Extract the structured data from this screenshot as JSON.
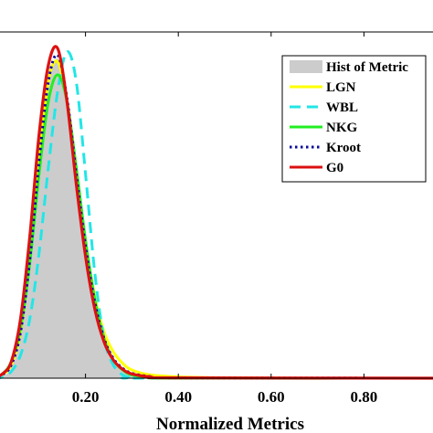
{
  "chart_data": {
    "type": "line",
    "xlabel": "Normalized Metrics",
    "ylabel": "",
    "xlim": [
      0.0,
      1.0
    ],
    "x_ticks": [
      0.2,
      0.4,
      0.6,
      0.8
    ],
    "x_tick_labels": [
      "0.20",
      "0.40",
      "0.60",
      "0.80"
    ],
    "grid": false,
    "legend_position": "top-right",
    "histogram": {
      "name": "Hist of Metric",
      "color": "#cccccc",
      "points": [
        [
          0.0,
          0.0
        ],
        [
          0.02,
          0.005
        ],
        [
          0.04,
          0.03
        ],
        [
          0.06,
          0.12
        ],
        [
          0.08,
          0.32
        ],
        [
          0.1,
          0.62
        ],
        [
          0.12,
          0.88
        ],
        [
          0.14,
          0.97
        ],
        [
          0.16,
          0.85
        ],
        [
          0.18,
          0.62
        ],
        [
          0.2,
          0.4
        ],
        [
          0.22,
          0.22
        ],
        [
          0.24,
          0.11
        ],
        [
          0.26,
          0.05
        ],
        [
          0.28,
          0.02
        ],
        [
          0.3,
          0.008
        ],
        [
          0.32,
          0.003
        ],
        [
          0.34,
          0.0
        ]
      ]
    },
    "series": [
      {
        "name": "LGN",
        "color": "#ffff00",
        "dash": "solid",
        "points": [
          [
            0.0,
            0.0
          ],
          [
            0.02,
            0.01
          ],
          [
            0.04,
            0.04
          ],
          [
            0.06,
            0.14
          ],
          [
            0.08,
            0.36
          ],
          [
            0.1,
            0.66
          ],
          [
            0.12,
            0.9
          ],
          [
            0.14,
            0.96
          ],
          [
            0.16,
            0.84
          ],
          [
            0.18,
            0.62
          ],
          [
            0.2,
            0.41
          ],
          [
            0.22,
            0.25
          ],
          [
            0.24,
            0.14
          ],
          [
            0.26,
            0.08
          ],
          [
            0.28,
            0.045
          ],
          [
            0.3,
            0.025
          ],
          [
            0.34,
            0.01
          ],
          [
            0.4,
            0.004
          ],
          [
            0.5,
            0.001
          ],
          [
            0.7,
            0.0
          ],
          [
            1.0,
            0.0
          ]
        ]
      },
      {
        "name": "WBL",
        "color": "#22e6e6",
        "dash": "dashed",
        "points": [
          [
            0.0,
            0.0
          ],
          [
            0.02,
            0.003
          ],
          [
            0.04,
            0.02
          ],
          [
            0.06,
            0.07
          ],
          [
            0.08,
            0.18
          ],
          [
            0.1,
            0.38
          ],
          [
            0.12,
            0.64
          ],
          [
            0.14,
            0.87
          ],
          [
            0.16,
            0.99
          ],
          [
            0.18,
            0.9
          ],
          [
            0.2,
            0.62
          ],
          [
            0.22,
            0.32
          ],
          [
            0.24,
            0.12
          ],
          [
            0.26,
            0.04
          ],
          [
            0.28,
            0.01
          ],
          [
            0.3,
            0.002
          ],
          [
            0.34,
            0.0
          ],
          [
            1.0,
            0.0
          ]
        ]
      },
      {
        "name": "NKG",
        "color": "#22ee22",
        "dash": "solid",
        "points": [
          [
            0.0,
            0.0
          ],
          [
            0.02,
            0.012
          ],
          [
            0.04,
            0.05
          ],
          [
            0.06,
            0.15
          ],
          [
            0.08,
            0.35
          ],
          [
            0.1,
            0.62
          ],
          [
            0.12,
            0.84
          ],
          [
            0.14,
            0.92
          ],
          [
            0.16,
            0.84
          ],
          [
            0.18,
            0.64
          ],
          [
            0.2,
            0.42
          ],
          [
            0.22,
            0.24
          ],
          [
            0.24,
            0.12
          ],
          [
            0.26,
            0.055
          ],
          [
            0.28,
            0.025
          ],
          [
            0.3,
            0.01
          ],
          [
            0.34,
            0.003
          ],
          [
            0.4,
            0.0
          ],
          [
            1.0,
            0.0
          ]
        ]
      },
      {
        "name": "Kroot",
        "color": "#0a0a99",
        "dash": "dotted",
        "points": [
          [
            0.0,
            0.0
          ],
          [
            0.02,
            0.01
          ],
          [
            0.04,
            0.04
          ],
          [
            0.06,
            0.14
          ],
          [
            0.08,
            0.36
          ],
          [
            0.1,
            0.66
          ],
          [
            0.12,
            0.9
          ],
          [
            0.14,
            0.98
          ],
          [
            0.16,
            0.85
          ],
          [
            0.18,
            0.62
          ],
          [
            0.2,
            0.4
          ],
          [
            0.22,
            0.23
          ],
          [
            0.24,
            0.12
          ],
          [
            0.26,
            0.06
          ],
          [
            0.28,
            0.03
          ],
          [
            0.3,
            0.015
          ],
          [
            0.34,
            0.005
          ],
          [
            0.4,
            0.001
          ],
          [
            1.0,
            0.0
          ]
        ]
      },
      {
        "name": "G0",
        "color": "#dd1111",
        "dash": "solid",
        "points": [
          [
            0.0,
            0.0
          ],
          [
            0.02,
            0.012
          ],
          [
            0.04,
            0.05
          ],
          [
            0.06,
            0.18
          ],
          [
            0.08,
            0.43
          ],
          [
            0.1,
            0.74
          ],
          [
            0.12,
            0.95
          ],
          [
            0.14,
            1.0
          ],
          [
            0.16,
            0.84
          ],
          [
            0.18,
            0.59
          ],
          [
            0.2,
            0.37
          ],
          [
            0.22,
            0.21
          ],
          [
            0.24,
            0.11
          ],
          [
            0.26,
            0.055
          ],
          [
            0.28,
            0.027
          ],
          [
            0.3,
            0.013
          ],
          [
            0.34,
            0.004
          ],
          [
            0.4,
            0.001
          ],
          [
            1.0,
            0.0
          ]
        ]
      }
    ]
  }
}
